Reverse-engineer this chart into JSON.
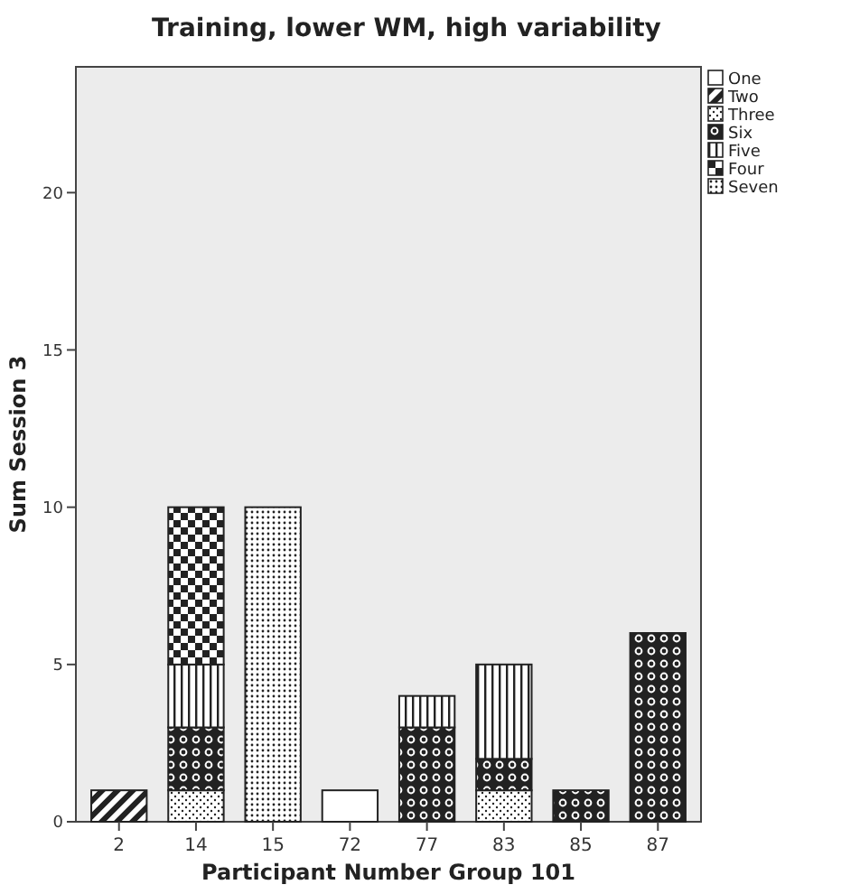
{
  "chart_data": {
    "type": "bar",
    "title": "Training, lower WM, high variability",
    "xlabel": "Participant Number Group 101",
    "ylabel": "Sum Session 3",
    "categories": [
      "2",
      "14",
      "15",
      "72",
      "77",
      "83",
      "85",
      "87"
    ],
    "stacked": true,
    "ylim": [
      0,
      24
    ],
    "yticks": [
      0,
      5,
      10,
      15,
      20
    ],
    "grid": false,
    "legend": "right",
    "series": [
      {
        "name": "One",
        "color": "#222222",
        "values": [
          null,
          null,
          null,
          1,
          null,
          null,
          null,
          null
        ]
      },
      {
        "name": "Two",
        "color": "#222222",
        "values": [
          1,
          null,
          null,
          null,
          null,
          null,
          null,
          null
        ]
      },
      {
        "name": "Three",
        "color": "#222222",
        "values": [
          null,
          1,
          null,
          null,
          null,
          1,
          null,
          null
        ]
      },
      {
        "name": "Six",
        "color": "#222222",
        "values": [
          null,
          2,
          null,
          null,
          3,
          1,
          1,
          6
        ]
      },
      {
        "name": "Five",
        "color": "#222222",
        "values": [
          null,
          2,
          null,
          null,
          1,
          3,
          null,
          null
        ]
      },
      {
        "name": "Four",
        "color": "#222222",
        "values": [
          null,
          5,
          null,
          null,
          null,
          null,
          null,
          null
        ]
      },
      {
        "name": "Seven",
        "color": "#222222",
        "values": [
          null,
          null,
          10,
          null,
          null,
          null,
          null,
          null
        ]
      }
    ]
  }
}
